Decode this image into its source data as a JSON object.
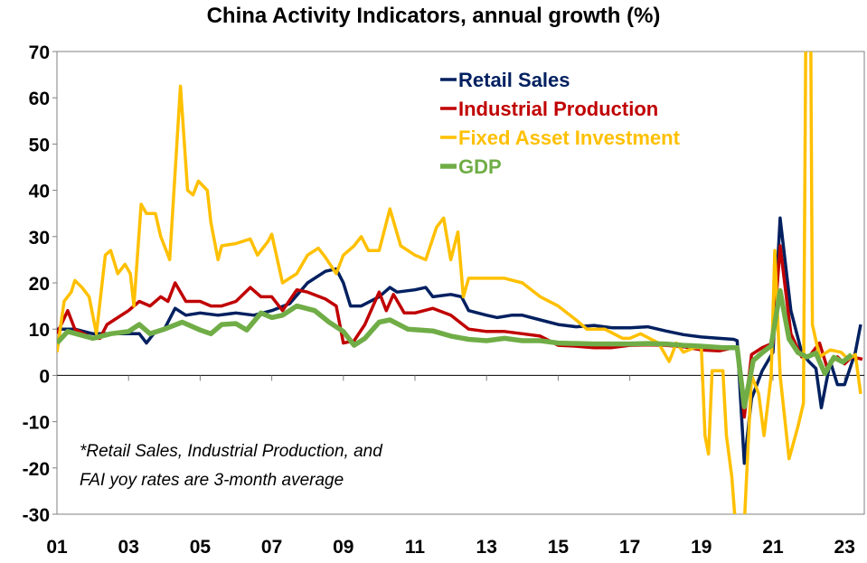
{
  "chart_data": {
    "type": "line",
    "title": "China Activity Indicators, annual growth (%)",
    "xlabel": "",
    "ylabel": "",
    "xlim": [
      2001,
      2023.55
    ],
    "ylim": [
      -30,
      70
    ],
    "x_ticks": [
      2001,
      2003,
      2005,
      2007,
      2009,
      2011,
      2013,
      2015,
      2017,
      2019,
      2021,
      2023
    ],
    "x_tick_labels": [
      "01",
      "03",
      "05",
      "07",
      "09",
      "11",
      "13",
      "15",
      "17",
      "19",
      "21",
      "23"
    ],
    "y_ticks": [
      -30,
      -20,
      -10,
      0,
      10,
      20,
      30,
      40,
      50,
      60,
      70
    ],
    "y_tick_labels": [
      "-30",
      "-20",
      "-10",
      "0",
      "10",
      "20",
      "30",
      "40",
      "50",
      "60",
      "70"
    ],
    "grid": false,
    "legend_position": "top-center",
    "annotation": [
      "*Retail Sales, Industrial Production, and",
      "FAI yoy rates are 3-month average"
    ],
    "series": [
      {
        "name": "Retail Sales",
        "color": "#002060",
        "width": 3.5,
        "points": [
          [
            2001,
            10
          ],
          [
            2001.5,
            10
          ],
          [
            2002,
            9
          ],
          [
            2002.5,
            9
          ],
          [
            2003,
            9
          ],
          [
            2003.3,
            9
          ],
          [
            2003.5,
            7
          ],
          [
            2003.7,
            9
          ],
          [
            2004,
            10
          ],
          [
            2004.3,
            14.5
          ],
          [
            2004.6,
            13
          ],
          [
            2005,
            13.5
          ],
          [
            2005.5,
            13
          ],
          [
            2006,
            13.5
          ],
          [
            2006.5,
            13
          ],
          [
            2007,
            14
          ],
          [
            2007.5,
            15.5
          ],
          [
            2008,
            20
          ],
          [
            2008.5,
            22.5
          ],
          [
            2008.8,
            23
          ],
          [
            2009,
            20
          ],
          [
            2009.2,
            15
          ],
          [
            2009.5,
            15
          ],
          [
            2010,
            17
          ],
          [
            2010.3,
            19
          ],
          [
            2010.5,
            18
          ],
          [
            2011,
            18.5
          ],
          [
            2011.3,
            19
          ],
          [
            2011.5,
            17
          ],
          [
            2012,
            17.5
          ],
          [
            2012.3,
            17
          ],
          [
            2012.5,
            14
          ],
          [
            2013,
            13
          ],
          [
            2013.3,
            12.5
          ],
          [
            2013.7,
            13
          ],
          [
            2014,
            13
          ],
          [
            2014.5,
            12
          ],
          [
            2015,
            11
          ],
          [
            2015.5,
            10.5
          ],
          [
            2016,
            10.8
          ],
          [
            2016.5,
            10.3
          ],
          [
            2017,
            10.3
          ],
          [
            2017.5,
            10.5
          ],
          [
            2018,
            9.6
          ],
          [
            2018.5,
            8.8
          ],
          [
            2019,
            8.3
          ],
          [
            2019.5,
            8
          ],
          [
            2019.9,
            7.8
          ],
          [
            2020.0,
            7.5
          ],
          [
            2020.2,
            -19
          ],
          [
            2020.4,
            -5
          ],
          [
            2020.7,
            1
          ],
          [
            2021.0,
            5
          ],
          [
            2021.2,
            34
          ],
          [
            2021.5,
            14
          ],
          [
            2021.8,
            5
          ],
          [
            2022.0,
            3
          ],
          [
            2022.2,
            1.5
          ],
          [
            2022.35,
            -7
          ],
          [
            2022.6,
            3
          ],
          [
            2022.8,
            -2
          ],
          [
            2023.0,
            -2
          ],
          [
            2023.3,
            5
          ],
          [
            2023.45,
            11
          ]
        ]
      },
      {
        "name": "Industrial Production",
        "color": "#C00000",
        "width": 3.5,
        "points": [
          [
            2001,
            9
          ],
          [
            2001.3,
            14
          ],
          [
            2001.5,
            10
          ],
          [
            2002,
            8
          ],
          [
            2002.2,
            8
          ],
          [
            2002.4,
            11
          ],
          [
            2002.7,
            12.5
          ],
          [
            2003,
            14
          ],
          [
            2003.3,
            16
          ],
          [
            2003.6,
            15
          ],
          [
            2003.9,
            17
          ],
          [
            2004.1,
            16
          ],
          [
            2004.3,
            20
          ],
          [
            2004.6,
            16
          ],
          [
            2005,
            16
          ],
          [
            2005.3,
            15
          ],
          [
            2005.6,
            15
          ],
          [
            2006,
            16
          ],
          [
            2006.4,
            19
          ],
          [
            2006.7,
            17
          ],
          [
            2007,
            17
          ],
          [
            2007.3,
            14
          ],
          [
            2007.7,
            18.5
          ],
          [
            2008,
            18
          ],
          [
            2008.5,
            16.5
          ],
          [
            2008.8,
            15
          ],
          [
            2009,
            7
          ],
          [
            2009.3,
            7.5
          ],
          [
            2009.6,
            11
          ],
          [
            2010,
            18
          ],
          [
            2010.2,
            14
          ],
          [
            2010.4,
            17.5
          ],
          [
            2010.7,
            13.5
          ],
          [
            2011,
            13.5
          ],
          [
            2011.5,
            14.5
          ],
          [
            2012,
            13
          ],
          [
            2012.5,
            10
          ],
          [
            2013,
            9.5
          ],
          [
            2013.5,
            9.5
          ],
          [
            2014,
            9
          ],
          [
            2014.5,
            8.5
          ],
          [
            2015,
            6.5
          ],
          [
            2015.5,
            6.3
          ],
          [
            2016,
            6
          ],
          [
            2016.5,
            6
          ],
          [
            2017,
            6.5
          ],
          [
            2017.5,
            6.6
          ],
          [
            2018,
            6.5
          ],
          [
            2018.5,
            6.2
          ],
          [
            2019,
            5.5
          ],
          [
            2019.5,
            5.3
          ],
          [
            2019.9,
            6
          ],
          [
            2020.0,
            6
          ],
          [
            2020.2,
            -9
          ],
          [
            2020.4,
            4.5
          ],
          [
            2020.7,
            6
          ],
          [
            2021.0,
            7
          ],
          [
            2021.2,
            28
          ],
          [
            2021.5,
            9
          ],
          [
            2021.8,
            4
          ],
          [
            2022.0,
            4
          ],
          [
            2022.3,
            7
          ],
          [
            2022.5,
            2
          ],
          [
            2022.8,
            4
          ],
          [
            2023.0,
            2.5
          ],
          [
            2023.2,
            4
          ],
          [
            2023.5,
            3.5
          ]
        ]
      },
      {
        "name": "Fixed Asset Investment",
        "color": "#FFC000",
        "width": 3.5,
        "points": [
          [
            2001,
            5
          ],
          [
            2001.2,
            16
          ],
          [
            2001.4,
            18
          ],
          [
            2001.5,
            20.5
          ],
          [
            2001.7,
            19
          ],
          [
            2001.9,
            17
          ],
          [
            2002.1,
            9
          ],
          [
            2002.35,
            26
          ],
          [
            2002.5,
            27
          ],
          [
            2002.7,
            22
          ],
          [
            2002.9,
            24
          ],
          [
            2003.05,
            22
          ],
          [
            2003.15,
            15
          ],
          [
            2003.35,
            37
          ],
          [
            2003.5,
            35
          ],
          [
            2003.75,
            35
          ],
          [
            2003.9,
            30
          ],
          [
            2004.1,
            26
          ],
          [
            2004.15,
            25
          ],
          [
            2004.45,
            62.5
          ],
          [
            2004.65,
            40
          ],
          [
            2004.8,
            39
          ],
          [
            2004.95,
            42
          ],
          [
            2005.2,
            40
          ],
          [
            2005.3,
            33
          ],
          [
            2005.5,
            25
          ],
          [
            2005.6,
            28
          ],
          [
            2006,
            28.5
          ],
          [
            2006.4,
            29.5
          ],
          [
            2006.6,
            26
          ],
          [
            2006.9,
            29
          ],
          [
            2007.0,
            30.5
          ],
          [
            2007.3,
            20
          ],
          [
            2007.5,
            21
          ],
          [
            2007.7,
            22
          ],
          [
            2008,
            26
          ],
          [
            2008.3,
            27.5
          ],
          [
            2008.5,
            25.5
          ],
          [
            2008.8,
            22
          ],
          [
            2009,
            26
          ],
          [
            2009.3,
            28
          ],
          [
            2009.5,
            30
          ],
          [
            2009.7,
            27
          ],
          [
            2010,
            27
          ],
          [
            2010.3,
            36
          ],
          [
            2010.6,
            28
          ],
          [
            2011,
            26
          ],
          [
            2011.3,
            25
          ],
          [
            2011.6,
            32
          ],
          [
            2011.8,
            34
          ],
          [
            2012,
            25
          ],
          [
            2012.2,
            31
          ],
          [
            2012.35,
            17
          ],
          [
            2012.5,
            21
          ],
          [
            2013,
            21
          ],
          [
            2013.5,
            21
          ],
          [
            2014,
            20
          ],
          [
            2014.5,
            17
          ],
          [
            2015,
            15
          ],
          [
            2015.5,
            12
          ],
          [
            2015.8,
            10
          ],
          [
            2016,
            10
          ],
          [
            2016.3,
            10
          ],
          [
            2016.8,
            8
          ],
          [
            2017,
            8
          ],
          [
            2017.3,
            9
          ],
          [
            2017.8,
            7
          ],
          [
            2018.1,
            3
          ],
          [
            2018.3,
            7
          ],
          [
            2018.5,
            5
          ],
          [
            2018.8,
            6
          ],
          [
            2019.0,
            6
          ],
          [
            2019.1,
            -13
          ],
          [
            2019.2,
            -17
          ],
          [
            2019.3,
            1
          ],
          [
            2019.6,
            1
          ],
          [
            2019.7,
            -13
          ],
          [
            2019.85,
            -22
          ],
          [
            2019.95,
            -32
          ],
          [
            2020.2,
            -32
          ],
          [
            2020.4,
            0
          ],
          [
            2020.6,
            -4
          ],
          [
            2020.75,
            -13
          ],
          [
            2020.95,
            0
          ],
          [
            2021.05,
            27
          ],
          [
            2021.2,
            0
          ],
          [
            2021.45,
            -18
          ],
          [
            2021.7,
            -11
          ],
          [
            2021.85,
            -6
          ],
          [
            2021.92,
            80
          ],
          [
            2022.05,
            80
          ],
          [
            2022.1,
            11
          ],
          [
            2022.3,
            4
          ],
          [
            2022.6,
            5.5
          ],
          [
            2022.9,
            5
          ],
          [
            2023.1,
            3.5
          ],
          [
            2023.3,
            4.5
          ],
          [
            2023.45,
            -4
          ]
        ]
      },
      {
        "name": "GDP",
        "color": "#70AD47",
        "width": 5.5,
        "points": [
          [
            2001,
            7
          ],
          [
            2001.3,
            9.5
          ],
          [
            2002,
            8
          ],
          [
            2002.5,
            9
          ],
          [
            2003,
            9.5
          ],
          [
            2003.3,
            11
          ],
          [
            2003.6,
            9
          ],
          [
            2004,
            10
          ],
          [
            2004.5,
            11.5
          ],
          [
            2005,
            9.8
          ],
          [
            2005.3,
            9
          ],
          [
            2005.6,
            11
          ],
          [
            2006,
            11.2
          ],
          [
            2006.3,
            9.8
          ],
          [
            2006.7,
            13.5
          ],
          [
            2007,
            12.5
          ],
          [
            2007.3,
            13
          ],
          [
            2007.7,
            15
          ],
          [
            2008.2,
            14
          ],
          [
            2008.6,
            11.5
          ],
          [
            2009,
            9.5
          ],
          [
            2009.3,
            6.5
          ],
          [
            2009.6,
            8
          ],
          [
            2010,
            11.5
          ],
          [
            2010.3,
            12
          ],
          [
            2010.8,
            10
          ],
          [
            2011.5,
            9.6
          ],
          [
            2012,
            8.5
          ],
          [
            2012.5,
            7.8
          ],
          [
            2013,
            7.5
          ],
          [
            2013.5,
            8
          ],
          [
            2014,
            7.5
          ],
          [
            2014.5,
            7.5
          ],
          [
            2015,
            7
          ],
          [
            2016,
            6.8
          ],
          [
            2017,
            6.8
          ],
          [
            2017.5,
            6.9
          ],
          [
            2018,
            6.8
          ],
          [
            2018.5,
            6.5
          ],
          [
            2019,
            6.3
          ],
          [
            2019.6,
            6
          ],
          [
            2020.0,
            6
          ],
          [
            2020.2,
            -6.8
          ],
          [
            2020.45,
            3.2
          ],
          [
            2020.7,
            4.9
          ],
          [
            2020.95,
            6.4
          ],
          [
            2021.2,
            18.3
          ],
          [
            2021.45,
            7.9
          ],
          [
            2021.7,
            4.9
          ],
          [
            2021.95,
            4
          ],
          [
            2022.2,
            4.8
          ],
          [
            2022.45,
            0.4
          ],
          [
            2022.7,
            3.9
          ],
          [
            2022.95,
            2.9
          ],
          [
            2023.2,
            4.5
          ]
        ]
      }
    ]
  }
}
